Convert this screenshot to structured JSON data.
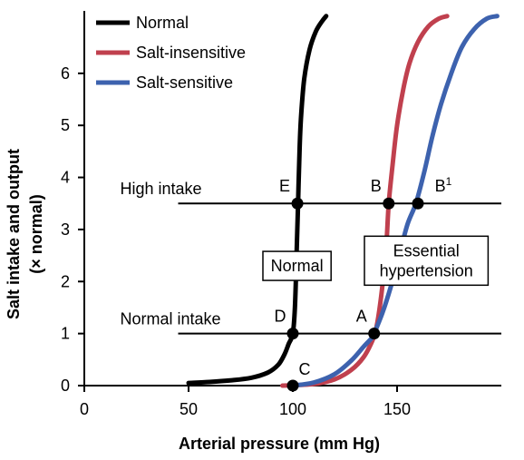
{
  "chart_data": {
    "type": "line",
    "xlabel": "Arterial pressure (mm Hg)",
    "ylabel_line1": "Salt intake and output",
    "ylabel_line2": "(× normal)",
    "xlim": [
      0,
      200
    ],
    "ylim": [
      0,
      7.2
    ],
    "x_ticks": [
      0,
      50,
      100,
      150
    ],
    "y_ticks": [
      0,
      1,
      2,
      3,
      4,
      5,
      6
    ],
    "grid": false,
    "legend_position": "top-left",
    "series": [
      {
        "name": "Normal",
        "color": "#000000",
        "points": [
          [
            50,
            0.05
          ],
          [
            60,
            0.07
          ],
          [
            70,
            0.1
          ],
          [
            80,
            0.15
          ],
          [
            88,
            0.25
          ],
          [
            93,
            0.4
          ],
          [
            96,
            0.6
          ],
          [
            98,
            0.8
          ],
          [
            100,
            1.0
          ],
          [
            101,
            1.5
          ],
          [
            101.8,
            2.5
          ],
          [
            102.5,
            3.5
          ],
          [
            103.2,
            4.5
          ],
          [
            104,
            5.2
          ],
          [
            105.5,
            5.9
          ],
          [
            108,
            6.45
          ],
          [
            111,
            6.8
          ],
          [
            114,
            7.0
          ],
          [
            116,
            7.1
          ]
        ]
      },
      {
        "name": "Salt-insensitive",
        "color": "#c0404e",
        "points": [
          [
            95,
            0.0
          ],
          [
            110,
            0.03
          ],
          [
            120,
            0.12
          ],
          [
            128,
            0.3
          ],
          [
            134,
            0.55
          ],
          [
            138,
            0.85
          ],
          [
            140,
            1.1
          ],
          [
            142,
            1.6
          ],
          [
            144,
            2.3
          ],
          [
            145,
            2.8
          ],
          [
            146,
            3.5
          ],
          [
            148,
            4.3
          ],
          [
            150,
            5.0
          ],
          [
            153,
            5.7
          ],
          [
            156,
            6.2
          ],
          [
            160,
            6.6
          ],
          [
            165,
            6.9
          ],
          [
            170,
            7.05
          ],
          [
            174,
            7.1
          ]
        ]
      },
      {
        "name": "Salt-sensitive",
        "color": "#3d62ae",
        "points": [
          [
            100,
            0.0
          ],
          [
            110,
            0.06
          ],
          [
            120,
            0.22
          ],
          [
            128,
            0.48
          ],
          [
            134,
            0.75
          ],
          [
            138,
            0.92
          ],
          [
            139,
            1.0
          ],
          [
            143,
            1.4
          ],
          [
            147,
            1.9
          ],
          [
            151,
            2.5
          ],
          [
            155,
            3.1
          ],
          [
            159,
            3.5
          ],
          [
            163,
            4.1
          ],
          [
            167,
            4.8
          ],
          [
            171,
            5.4
          ],
          [
            176,
            6.0
          ],
          [
            181,
            6.5
          ],
          [
            187,
            6.85
          ],
          [
            193,
            7.05
          ],
          [
            198,
            7.1
          ]
        ]
      }
    ],
    "intake_lines": [
      {
        "label": "High intake",
        "y": 3.5,
        "x_start": 45,
        "x_end": 200
      },
      {
        "label": "Normal intake",
        "y": 1.0,
        "x_start": 45,
        "x_end": 200
      }
    ],
    "points": [
      {
        "label": "E",
        "x": 102.2,
        "y": 3.5
      },
      {
        "label": "B",
        "x": 146.0,
        "y": 3.5
      },
      {
        "label": "B",
        "superscript": "1",
        "x": 160.0,
        "y": 3.5
      },
      {
        "label": "D",
        "x": 100.0,
        "y": 1.0
      },
      {
        "label": "A",
        "x": 139.0,
        "y": 1.0
      },
      {
        "label": "C",
        "x": 100.0,
        "y": 0.0
      }
    ],
    "annotations": [
      {
        "lines": [
          "Normal"
        ],
        "x": 102,
        "y": 2.3
      },
      {
        "lines": [
          "Essential",
          "hypertension"
        ],
        "x": 164,
        "y": 2.4
      }
    ]
  }
}
